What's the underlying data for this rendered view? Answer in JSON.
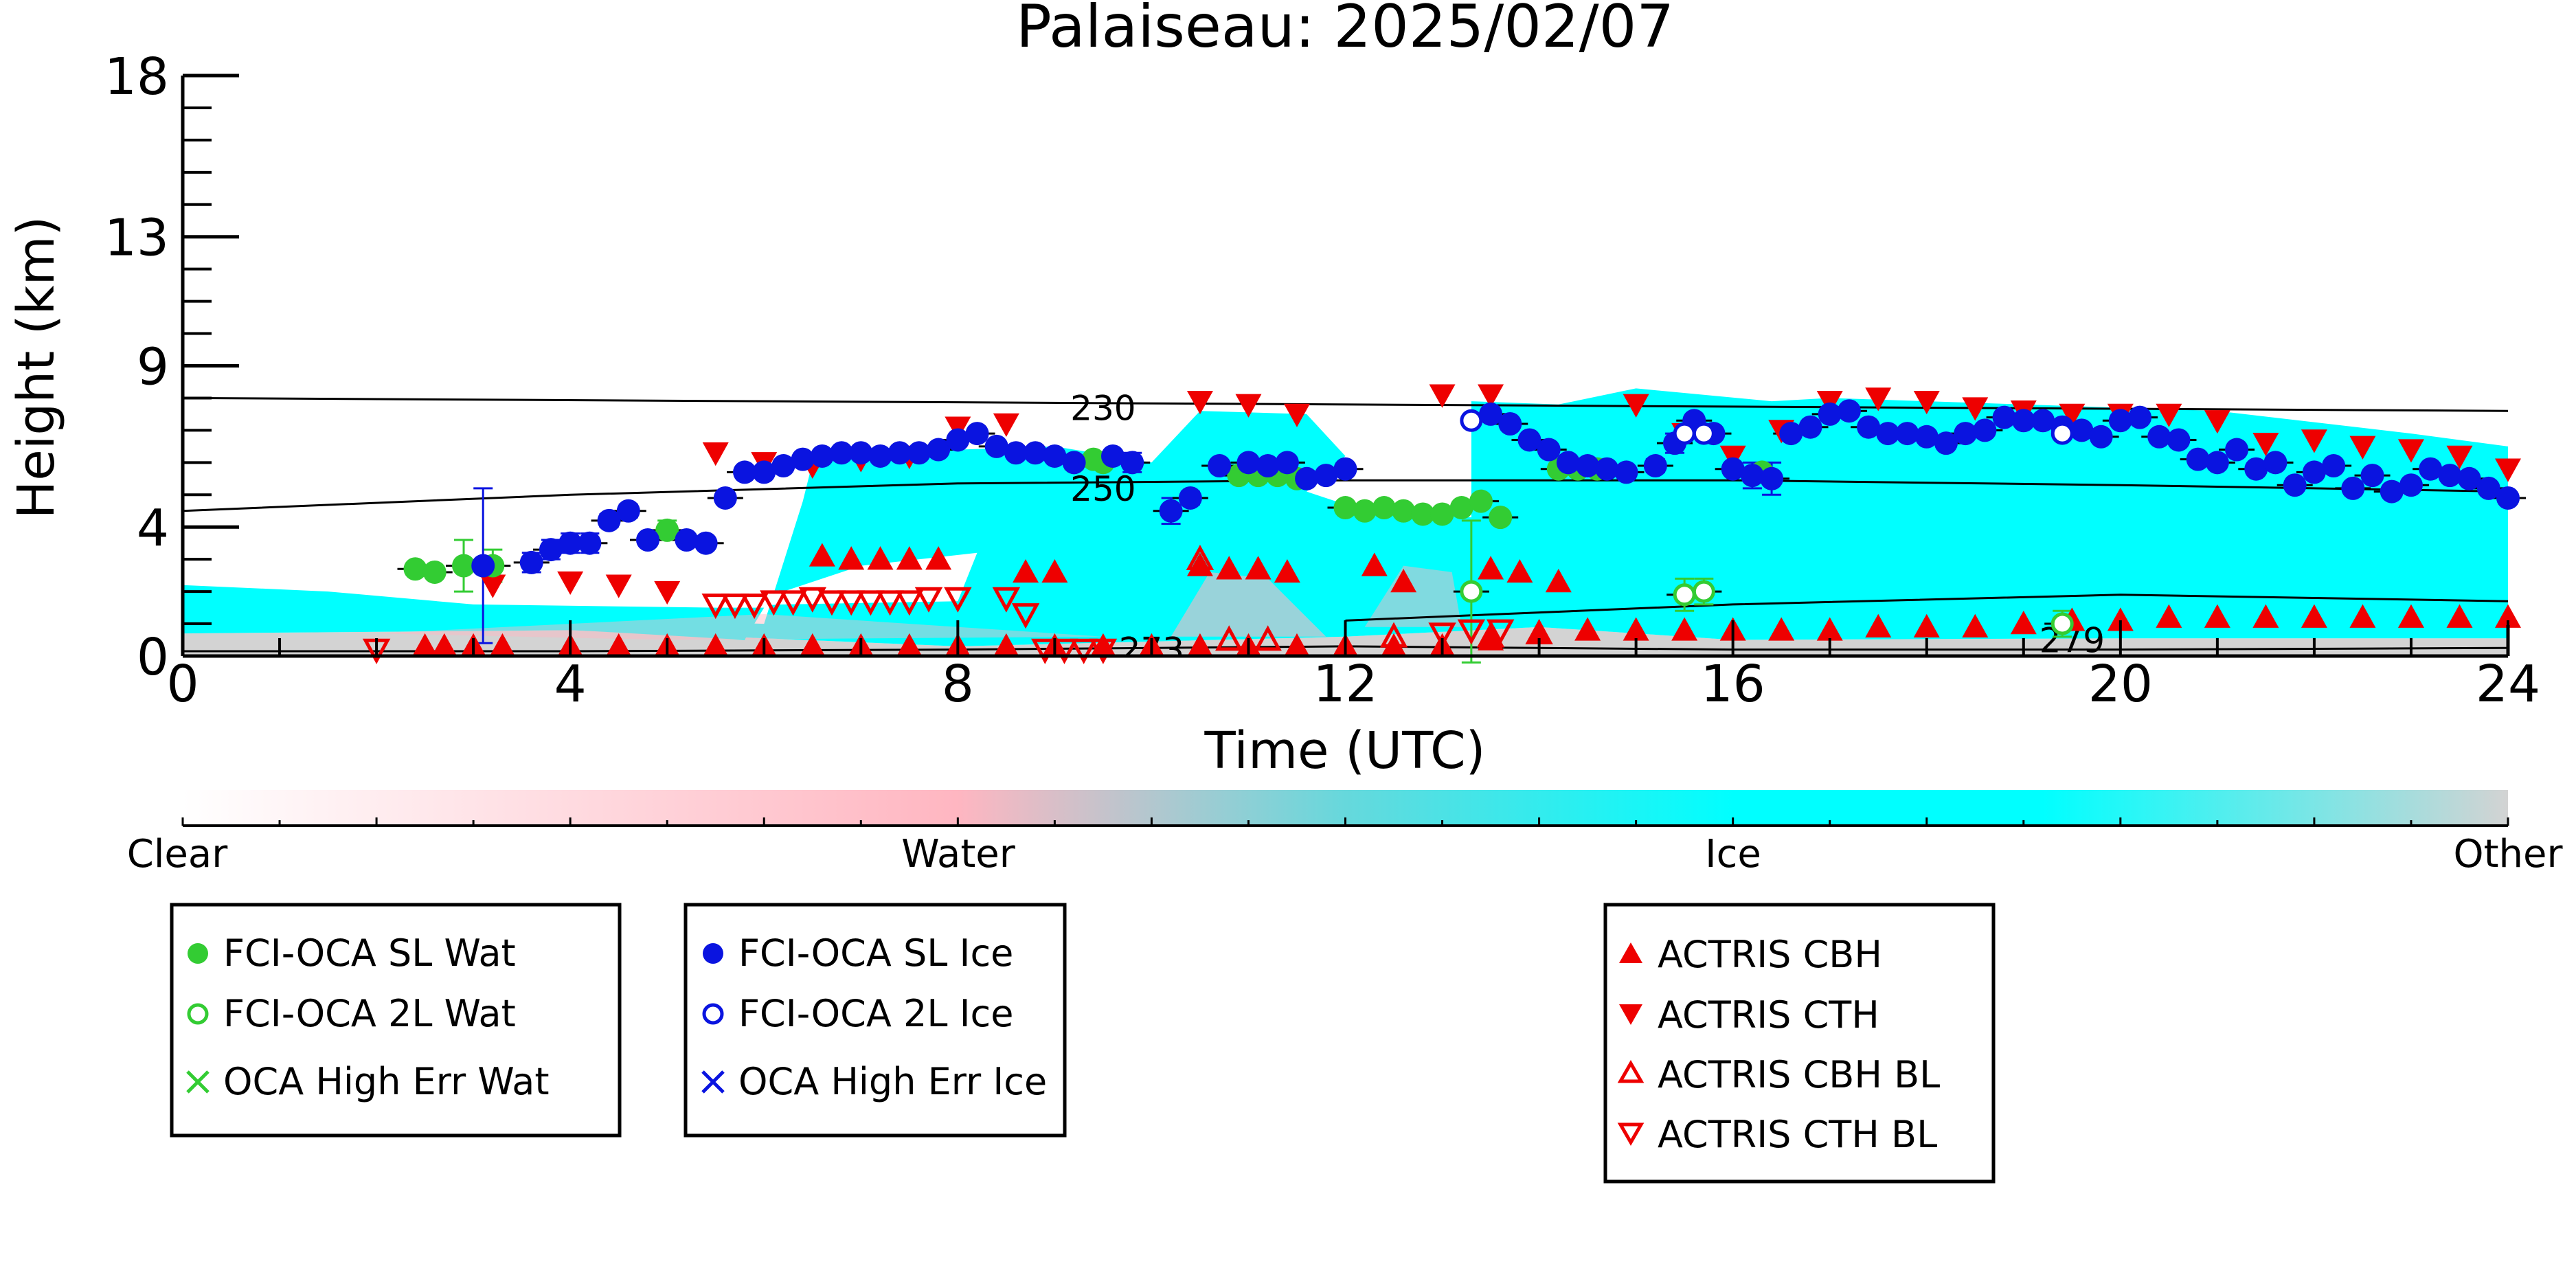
{
  "chart_data": {
    "type": "scatter",
    "title": "Palaiseau: 2025/02/07",
    "xlabel": "Time (UTC)",
    "ylabel": "Height (km)",
    "xlim": [
      0,
      24
    ],
    "ylim": [
      0,
      18
    ],
    "xticks": [
      0,
      4,
      8,
      12,
      16,
      20,
      24
    ],
    "yticks": [
      0,
      4,
      9,
      13,
      18
    ],
    "ytick_labels": [
      "0",
      "4",
      "9",
      "13",
      "18"
    ],
    "grid": false,
    "colorbar": {
      "labels": [
        "Clear",
        "Water",
        "Ice",
        "Other"
      ],
      "colors": [
        "#ffffff",
        "#ffb6c1",
        "#00ffff",
        "#d3d3d3"
      ]
    },
    "isotherms": [
      {
        "label": "230",
        "x": [
          0,
          24
        ],
        "y": [
          8,
          7.6
        ]
      },
      {
        "label": "250",
        "x": [
          0,
          4,
          8,
          12,
          16,
          20,
          24
        ],
        "y": [
          4.5,
          5.0,
          5.35,
          5.45,
          5.45,
          5.3,
          5.1
        ]
      },
      {
        "label": "273",
        "x": [
          0,
          4,
          8,
          12,
          16,
          20,
          24
        ],
        "y": [
          0.15,
          0.15,
          0.2,
          0.3,
          0.2,
          0.2,
          0.25
        ]
      },
      {
        "label": "279",
        "x": [
          12,
          16,
          20,
          24
        ],
        "y": [
          1.1,
          1.6,
          1.9,
          1.7
        ]
      }
    ],
    "isotherm_label_positions": [
      {
        "label": "230",
        "x": 9.5,
        "y": 7.7
      },
      {
        "label": "250",
        "x": 9.5,
        "y": 5.2
      },
      {
        "label": "273",
        "x": 10.0,
        "y": 0.2
      },
      {
        "label": "279",
        "x": 19.5,
        "y": 0.5
      }
    ],
    "series": [
      {
        "name": "FCI-OCA SL Wat",
        "marker": "filled-circle",
        "color": "#33cc33",
        "x": [
          2.4,
          2.6,
          2.9,
          3.2,
          5.0,
          9.2,
          9.4,
          9.5,
          10.9,
          11.1,
          11.3,
          11.5,
          12.0,
          12.2,
          12.4,
          12.6,
          12.8,
          13.0,
          13.2,
          13.4,
          13.6,
          14.2,
          14.4,
          14.6,
          16.3
        ],
        "y": [
          2.7,
          2.6,
          2.8,
          2.8,
          3.9,
          6.0,
          6.1,
          6.0,
          5.6,
          5.6,
          5.6,
          5.5,
          4.6,
          4.5,
          4.6,
          4.5,
          4.4,
          4.4,
          4.6,
          4.8,
          4.3,
          5.8,
          5.8,
          5.8,
          5.7
        ],
        "yerr": [
          0.1,
          0.1,
          0.8,
          0.5,
          0.3,
          0.2,
          0.1,
          0.1,
          0.1,
          0.1,
          0.1,
          0.1,
          0.1,
          0.1,
          0.1,
          0.1,
          0.1,
          0.1,
          0.1,
          0.1,
          0.1,
          0.1,
          0.1,
          0.1,
          0.1
        ]
      },
      {
        "name": "FCI-OCA 2L Wat",
        "marker": "open-circle",
        "color": "#33cc33",
        "x": [
          13.3,
          15.5,
          15.7,
          19.4
        ],
        "y": [
          2.0,
          1.9,
          2.0,
          1.0
        ],
        "yerr": [
          2.2,
          0.5,
          0.4,
          0.4
        ]
      },
      {
        "name": "OCA High Err Wat",
        "marker": "x",
        "color": "#33cc33",
        "x": [],
        "y": []
      },
      {
        "name": "FCI-OCA SL Ice",
        "marker": "filled-circle",
        "color": "#0a14e0",
        "x": [
          3.1,
          3.6,
          3.8,
          4.0,
          4.2,
          4.4,
          4.6,
          4.8,
          5.2,
          5.4,
          5.6,
          5.8,
          6.0,
          6.2,
          6.4,
          6.6,
          6.8,
          7.0,
          7.2,
          7.4,
          7.6,
          7.8,
          8.0,
          8.2,
          8.4,
          8.6,
          8.8,
          9.0,
          9.2,
          9.6,
          9.8,
          10.2,
          10.4,
          10.7,
          11.0,
          11.2,
          11.4,
          11.6,
          11.8,
          12.0,
          13.5,
          13.7,
          13.9,
          14.1,
          14.3,
          14.5,
          14.7,
          14.9,
          15.2,
          15.4,
          15.6,
          15.8,
          16.0,
          16.2,
          16.4,
          16.6,
          16.8,
          17.0,
          17.2,
          17.4,
          17.6,
          17.8,
          18.0,
          18.2,
          18.4,
          18.6,
          18.8,
          19.0,
          19.2,
          19.4,
          19.6,
          19.8,
          20.0,
          20.2,
          20.4,
          20.6,
          20.8,
          21.0,
          21.2,
          21.4,
          21.6,
          21.8,
          22.0,
          22.2,
          22.4,
          22.6,
          22.8,
          23.0,
          23.2,
          23.4,
          23.6,
          23.8,
          24.0
        ],
        "y": [
          2.8,
          2.9,
          3.3,
          3.5,
          3.5,
          4.2,
          4.5,
          3.6,
          3.6,
          3.5,
          4.9,
          5.7,
          5.7,
          5.9,
          6.1,
          6.2,
          6.3,
          6.3,
          6.2,
          6.3,
          6.3,
          6.4,
          6.7,
          6.9,
          6.5,
          6.3,
          6.3,
          6.2,
          6.0,
          6.2,
          6.0,
          4.5,
          4.9,
          5.9,
          6.0,
          5.9,
          6.0,
          5.5,
          5.6,
          5.8,
          7.5,
          7.2,
          6.7,
          6.4,
          6.0,
          5.9,
          5.8,
          5.7,
          5.9,
          6.6,
          7.3,
          6.9,
          5.8,
          5.6,
          5.5,
          6.9,
          7.1,
          7.5,
          7.6,
          7.1,
          6.9,
          6.9,
          6.8,
          6.6,
          6.9,
          7.0,
          7.4,
          7.3,
          7.3,
          7.1,
          7.0,
          6.8,
          7.3,
          7.4,
          6.8,
          6.7,
          6.1,
          6.0,
          6.4,
          5.8,
          6.0,
          5.3,
          5.7,
          5.9,
          5.2,
          5.6,
          5.1,
          5.3,
          5.8,
          5.6,
          5.5,
          5.2,
          4.9
        ],
        "yerr": [
          2.4,
          0.3,
          0.3,
          0.3,
          0.3,
          0.2,
          0.2,
          0.1,
          0.1,
          0.1,
          0.1,
          0.1,
          0.1,
          0.1,
          0.1,
          0.1,
          0.1,
          0.1,
          0.1,
          0.1,
          0.1,
          0.1,
          0.1,
          0.1,
          0.1,
          0.1,
          0.1,
          0.1,
          0.1,
          0.1,
          0.3,
          0.4,
          0.2,
          0.1,
          0.1,
          0.1,
          0.1,
          0.1,
          0.1,
          0.1,
          0.1,
          0.1,
          0.1,
          0.1,
          0.1,
          0.1,
          0.1,
          0.1,
          0.2,
          0.3,
          0.1,
          0.1,
          0.1,
          0.4,
          0.5,
          0.1,
          0.1,
          0.1,
          0.1,
          0.1,
          0.1,
          0.1,
          0.1,
          0.1,
          0.1,
          0.1,
          0.1,
          0.1,
          0.1,
          0.1,
          0.1,
          0.1,
          0.1,
          0.1,
          0.1,
          0.1,
          0.1,
          0.1,
          0.1,
          0.1,
          0.1,
          0.1,
          0.1,
          0.1,
          0.1,
          0.1,
          0.1,
          0.1,
          0.1,
          0.1,
          0.1,
          0.1,
          0.1
        ]
      },
      {
        "name": "FCI-OCA 2L Ice",
        "marker": "open-circle",
        "color": "#0a14e0",
        "x": [
          13.3,
          15.5,
          15.7,
          19.4
        ],
        "y": [
          7.3,
          6.9,
          6.9,
          6.9
        ]
      },
      {
        "name": "OCA High Err Ice",
        "marker": "x",
        "color": "#0a14e0",
        "x": [],
        "y": []
      },
      {
        "name": "ACTRIS CBH",
        "marker": "filled-triangle-up",
        "color": "#ee0000",
        "x": [
          2.5,
          2.7,
          3.0,
          3.3,
          4.0,
          4.5,
          5.0,
          5.5,
          6.0,
          6.5,
          7.0,
          7.5,
          8.0,
          8.5,
          9.0,
          9.5,
          10.0,
          10.5,
          11.0,
          11.5,
          12.0,
          12.5,
          13.0,
          13.5,
          14.0,
          14.5,
          15.0,
          15.5,
          16.0,
          16.5,
          17.0,
          17.5,
          18.0,
          18.5,
          19.0,
          19.5,
          20.0,
          20.5,
          21.0,
          21.5,
          22.0,
          22.5,
          23.0,
          23.5,
          24.0,
          6.6,
          6.9,
          7.2,
          7.5,
          7.8,
          8.7,
          9.0,
          10.5,
          10.8,
          11.1,
          11.4,
          12.3,
          12.6,
          13.5,
          13.8,
          14.2
        ],
        "y": [
          0.3,
          0.3,
          0.3,
          0.3,
          0.3,
          0.3,
          0.3,
          0.3,
          0.3,
          0.3,
          0.3,
          0.3,
          0.3,
          0.3,
          0.3,
          0.3,
          0.3,
          0.3,
          0.3,
          0.3,
          0.3,
          0.3,
          0.3,
          0.5,
          0.7,
          0.8,
          0.8,
          0.8,
          0.8,
          0.8,
          0.8,
          0.9,
          0.9,
          0.9,
          1.0,
          1.1,
          1.1,
          1.2,
          1.2,
          1.2,
          1.2,
          1.2,
          1.2,
          1.2,
          1.2,
          3.1,
          3.0,
          3.0,
          3.0,
          3.0,
          2.6,
          2.6,
          2.8,
          2.7,
          2.7,
          2.6,
          2.8,
          2.3,
          2.7,
          2.6,
          2.3
        ]
      },
      {
        "name": "ACTRIS CTH",
        "marker": "filled-triangle-down",
        "color": "#ee0000",
        "x": [
          3.2,
          4.0,
          4.5,
          5.0,
          5.5,
          6.0,
          6.5,
          7.0,
          7.5,
          8.0,
          8.5,
          10.5,
          11.0,
          11.5,
          13.0,
          13.5,
          15.0,
          15.5,
          16.0,
          16.5,
          17.0,
          17.5,
          18.0,
          18.5,
          19.0,
          19.5,
          20.0,
          20.5,
          21.0,
          21.5,
          22.0,
          22.5,
          23.0,
          23.5,
          24.0
        ],
        "y": [
          2.2,
          2.3,
          2.2,
          2.0,
          6.3,
          6.0,
          5.9,
          6.1,
          6.2,
          7.1,
          7.2,
          7.9,
          7.8,
          7.5,
          8.1,
          8.1,
          7.8,
          6.9,
          6.2,
          7.0,
          7.9,
          8.0,
          7.9,
          7.7,
          7.6,
          7.5,
          7.5,
          7.5,
          7.3,
          6.6,
          6.7,
          6.5,
          6.4,
          6.2,
          5.8
        ]
      },
      {
        "name": "ACTRIS CBH BL",
        "marker": "open-triangle-up",
        "color": "#ee0000",
        "x": [
          10.5,
          10.8,
          11.2,
          12.5,
          13.5,
          14.0
        ],
        "y": [
          3.0,
          0.5,
          0.5,
          0.6,
          0.6,
          0.7
        ]
      },
      {
        "name": "ACTRIS CTH BL",
        "marker": "open-triangle-down",
        "color": "#ee0000",
        "x": [
          5.5,
          5.7,
          5.9,
          6.1,
          6.3,
          6.5,
          6.7,
          6.9,
          7.1,
          7.3,
          7.5,
          7.7,
          8.0,
          8.5,
          8.7,
          8.9,
          9.1,
          9.3,
          9.5,
          13.0,
          13.3,
          13.6,
          2.0
        ],
        "y": [
          1.6,
          1.6,
          1.6,
          1.7,
          1.7,
          1.8,
          1.7,
          1.7,
          1.7,
          1.7,
          1.7,
          1.8,
          1.8,
          1.8,
          1.3,
          0.2,
          0.2,
          0.2,
          0.2,
          0.7,
          0.8,
          0.8,
          0.2
        ]
      }
    ]
  }
}
